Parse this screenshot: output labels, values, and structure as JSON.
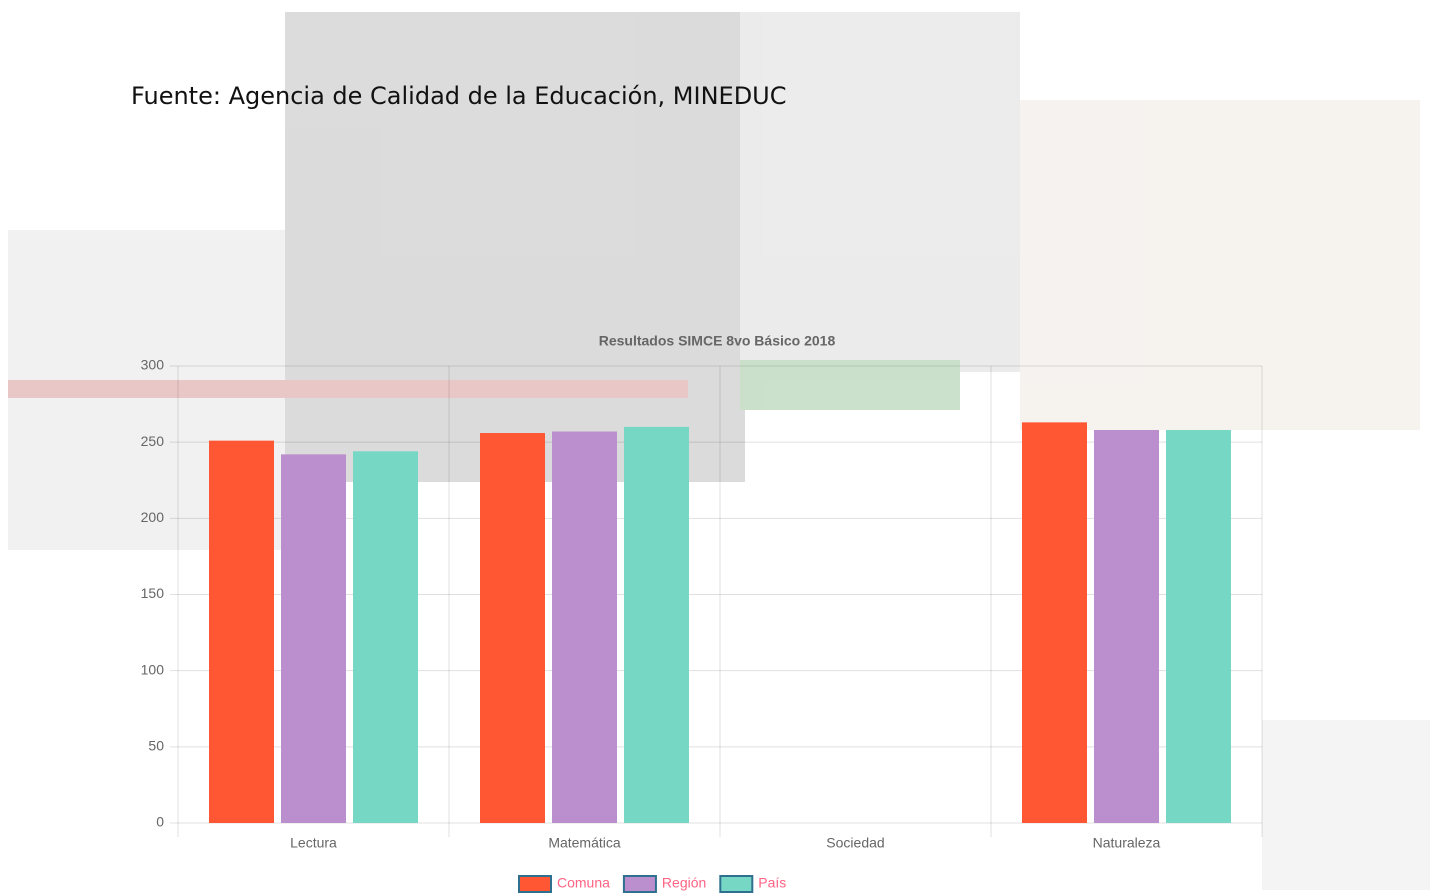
{
  "source": "Fuente: Agencia de Calidad de la Educación, MINEDUC",
  "chart_data": {
    "type": "bar",
    "title": "Resultados SIMCE 8vo Básico 2018",
    "categories": [
      "Lectura",
      "Matemática",
      "Sociedad",
      "Naturaleza"
    ],
    "series": [
      {
        "name": "Comuna",
        "color": "#ff5733",
        "values": [
          251,
          256,
          null,
          263
        ]
      },
      {
        "name": "Región",
        "color": "#bb8fce",
        "values": [
          242,
          257,
          null,
          258
        ]
      },
      {
        "name": "País",
        "color": "#76d7c4",
        "values": [
          244,
          260,
          null,
          258
        ]
      }
    ],
    "ylim": [
      0,
      300
    ],
    "yticks": [
      0,
      50,
      100,
      150,
      200,
      250,
      300
    ],
    "grid": true,
    "legend": "bottom"
  }
}
